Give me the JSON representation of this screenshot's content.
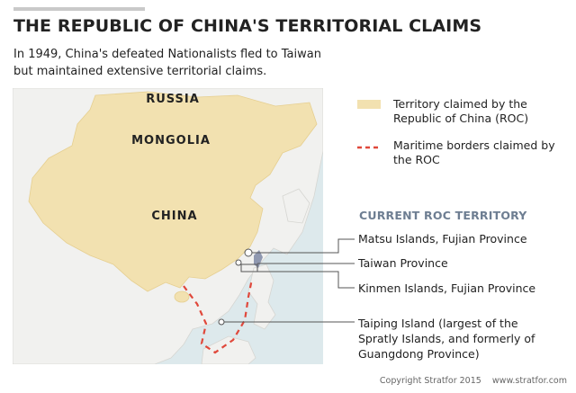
{
  "header": {
    "title": "THE REPUBLIC OF CHINA'S TERRITORIAL CLAIMS",
    "subtitle": "In 1949, China's defeated Nationalists fled to Taiwan but maintained extensive territorial claims."
  },
  "map": {
    "labels": {
      "russia": "RUSSIA",
      "mongolia": "MONGOLIA",
      "china": "CHINA"
    },
    "colors": {
      "claimed_fill": "#f2e1b0",
      "land": "#f1f1ef",
      "sea": "#dde9ec",
      "maritime_border": "#e0483b",
      "roc_territory": "#8f98b0"
    }
  },
  "legend": {
    "claimed_territory": "Territory claimed by the Republic of China (ROC)",
    "maritime_borders": "Maritime borders claimed by the ROC"
  },
  "current_roc_territory": {
    "heading": "CURRENT ROC TERRITORY",
    "items": [
      "Matsu Islands, Fujian Province",
      "Taiwan Province",
      "Kinmen Islands, Fujian Province",
      "Taiping Island (largest of the Spratly Islands, and formerly of Guangdong Province)"
    ]
  },
  "footer": {
    "copyright": "Copyright Stratfor 2015",
    "url": "www.stratfor.com"
  }
}
